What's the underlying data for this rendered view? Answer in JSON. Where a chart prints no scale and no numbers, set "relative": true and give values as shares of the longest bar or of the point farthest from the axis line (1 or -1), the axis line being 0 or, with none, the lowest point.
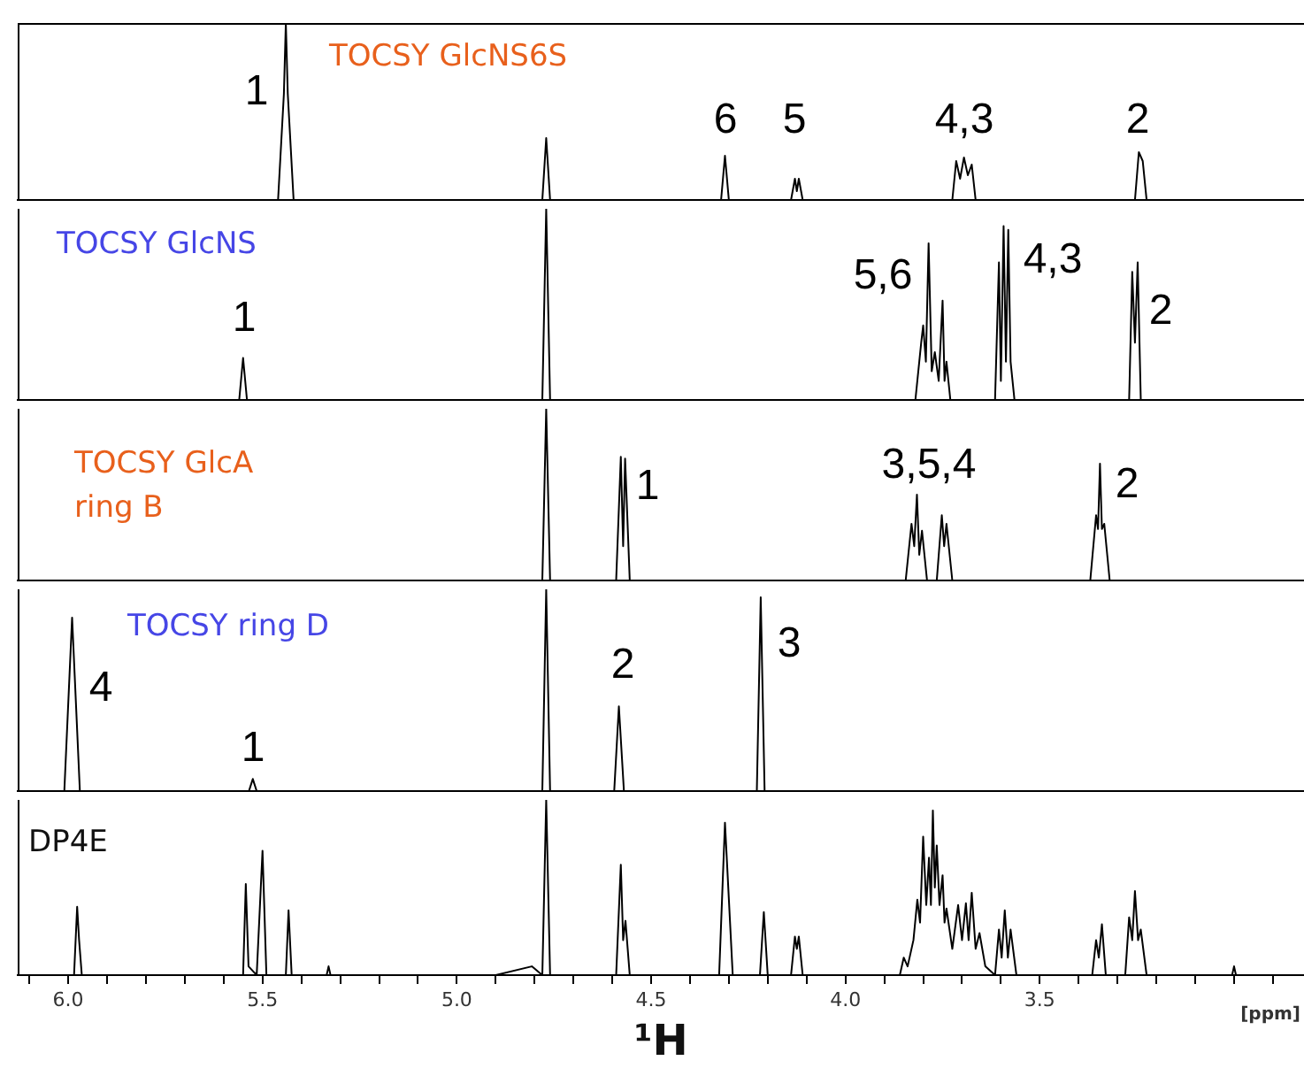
{
  "chart_data": [
    {
      "type": "line",
      "title": "TOCSY GlcNS6S",
      "relative": true,
      "xlim": [
        6.13,
        2.82
      ],
      "tick_labels": false,
      "series": [
        {
          "color": "#000000",
          "x": [
            6.13,
            5.46,
            5.445,
            5.44,
            5.435,
            5.42,
            4.78,
            4.77,
            4.76,
            4.32,
            4.31,
            4.3,
            4.14,
            4.13,
            4.125,
            4.12,
            4.11,
            3.725,
            3.715,
            3.705,
            3.695,
            3.685,
            3.675,
            3.665,
            3.255,
            3.245,
            3.235,
            3.225,
            2.82
          ],
          "values": [
            0,
            0,
            0.6,
            1,
            0.6,
            0,
            0,
            0.35,
            0,
            0,
            0.25,
            0,
            0,
            0.12,
            0.05,
            0.12,
            0,
            0,
            0.22,
            0.12,
            0.24,
            0.14,
            0.2,
            0,
            0,
            0.27,
            0.22,
            0,
            0
          ]
        }
      ],
      "annotations": [
        "1",
        "6",
        "5",
        "4,3",
        "2"
      ]
    },
    {
      "type": "line",
      "title": "TOCSY GlcNS",
      "relative": true,
      "xlim": [
        6.13,
        2.82
      ],
      "tick_labels": false,
      "series": [
        {
          "color": "#000000",
          "x": [
            6.13,
            5.56,
            5.55,
            5.54,
            4.78,
            4.77,
            4.76,
            3.82,
            3.805,
            3.8,
            3.793,
            3.786,
            3.778,
            3.77,
            3.76,
            3.75,
            3.745,
            3.74,
            3.73,
            3.615,
            3.605,
            3.6,
            3.593,
            3.587,
            3.581,
            3.575,
            3.565,
            3.27,
            3.262,
            3.255,
            3.248,
            3.24,
            2.82
          ],
          "values": [
            0,
            0,
            0.22,
            0,
            0,
            1,
            0,
            0,
            0.3,
            0.39,
            0.2,
            0.82,
            0.15,
            0.25,
            0.1,
            0.52,
            0.1,
            0.2,
            0,
            0,
            0.72,
            0.1,
            0.91,
            0.2,
            0.89,
            0.2,
            0,
            0,
            0.67,
            0.3,
            0.72,
            0,
            0
          ]
        }
      ],
      "annotations": [
        "1",
        "5,6",
        "4,3",
        "2"
      ]
    },
    {
      "type": "line",
      "title": "TOCSY GlcA\nring B",
      "relative": true,
      "xlim": [
        6.13,
        2.82
      ],
      "tick_labels": false,
      "series": [
        {
          "color": "#000000",
          "x": [
            6.13,
            4.78,
            4.77,
            4.76,
            4.59,
            4.578,
            4.572,
            4.567,
            4.555,
            3.845,
            3.83,
            3.823,
            3.816,
            3.81,
            3.803,
            3.79,
            3.765,
            3.752,
            3.746,
            3.74,
            3.725,
            3.37,
            3.355,
            3.35,
            3.345,
            3.34,
            3.334,
            3.32,
            2.82
          ],
          "values": [
            0,
            0,
            1,
            0,
            0,
            0.72,
            0.2,
            0.71,
            0,
            0,
            0.33,
            0.2,
            0.5,
            0.15,
            0.29,
            0,
            0,
            0.38,
            0.2,
            0.33,
            0,
            0,
            0.38,
            0.3,
            0.68,
            0.3,
            0.33,
            0,
            0
          ]
        }
      ],
      "annotations": [
        "1",
        "3,5,4",
        "2"
      ]
    },
    {
      "type": "line",
      "title": "TOCSY ring D",
      "relative": true,
      "xlim": [
        6.13,
        2.82
      ],
      "tick_labels": false,
      "series": [
        {
          "color": "#000000",
          "x": [
            6.13,
            6.01,
            5.99,
            5.97,
            5.535,
            5.525,
            5.515,
            4.78,
            4.77,
            4.76,
            4.595,
            4.583,
            4.57,
            4.228,
            4.218,
            4.208,
            2.82
          ],
          "values": [
            0,
            0,
            0.86,
            0,
            0,
            0.06,
            0,
            0,
            1,
            0,
            0,
            0.42,
            0,
            0,
            0.96,
            0,
            0
          ]
        }
      ],
      "annotations": [
        "4",
        "1",
        "2",
        "3"
      ]
    },
    {
      "type": "line",
      "title": "DP4E",
      "relative": true,
      "xlim": [
        6.13,
        2.82
      ],
      "xlabel": "¹H",
      "xticks": [
        {
          "value": 6.1,
          "label": null
        },
        {
          "value": 6,
          "label": "6.0"
        },
        {
          "value": 5.9,
          "label": null
        },
        {
          "value": 5.8,
          "label": null
        },
        {
          "value": 5.7,
          "label": null
        },
        {
          "value": 5.6,
          "label": null
        },
        {
          "value": 5.5,
          "label": "5.5"
        },
        {
          "value": 5.4,
          "label": null
        },
        {
          "value": 5.3,
          "label": null
        },
        {
          "value": 5.2,
          "label": null
        },
        {
          "value": 5.1,
          "label": null
        },
        {
          "value": 5,
          "label": "5.0"
        },
        {
          "value": 4.9,
          "label": null
        },
        {
          "value": 4.8,
          "label": null
        },
        {
          "value": 4.7,
          "label": null
        },
        {
          "value": 4.6,
          "label": null
        },
        {
          "value": 4.5,
          "label": "4.5"
        },
        {
          "value": 4.4,
          "label": null
        },
        {
          "value": 4.3,
          "label": null
        },
        {
          "value": 4.2,
          "label": null
        },
        {
          "value": 4.1,
          "label": null
        },
        {
          "value": 4,
          "label": "4.0"
        },
        {
          "value": 3.9,
          "label": null
        },
        {
          "value": 3.8,
          "label": null
        },
        {
          "value": 3.7,
          "label": null
        },
        {
          "value": 3.6,
          "label": null
        },
        {
          "value": 3.5,
          "label": "3.5"
        },
        {
          "value": 3.4,
          "label": null
        },
        {
          "value": 3.3,
          "label": null
        },
        {
          "value": 3.2,
          "label": null
        },
        {
          "value": 3.1,
          "label": null
        },
        {
          "value": 3,
          "label": null
        },
        {
          "value": 2.9,
          "label": null
        }
      ],
      "series": [
        {
          "color": "#000000",
          "x": [
            6.13,
            5.985,
            5.977,
            5.972,
            5.965,
            5.55,
            5.543,
            5.536,
            5.515,
            5.5,
            5.49,
            5.44,
            5.433,
            5.425,
            5.335,
            5.33,
            5.325,
            4.9,
            4.807,
            4.78,
            4.77,
            4.76,
            4.59,
            4.578,
            4.572,
            4.566,
            4.555,
            4.325,
            4.31,
            4.29,
            4.22,
            4.21,
            4.2,
            4.14,
            4.13,
            4.125,
            4.12,
            4.11,
            3.86,
            3.85,
            3.84,
            3.825,
            3.815,
            3.808,
            3.8,
            3.792,
            3.785,
            3.78,
            3.775,
            3.77,
            3.765,
            3.758,
            3.75,
            3.745,
            3.74,
            3.725,
            3.71,
            3.7,
            3.69,
            3.683,
            3.675,
            3.665,
            3.655,
            3.64,
            3.615,
            3.605,
            3.598,
            3.59,
            3.582,
            3.575,
            3.56,
            3.365,
            3.355,
            3.348,
            3.34,
            3.33,
            3.28,
            3.27,
            3.262,
            3.255,
            3.247,
            3.24,
            3.225,
            3.005,
            3.0,
            2.995,
            2.82
          ],
          "values": [
            0,
            0,
            0.39,
            0.2,
            0,
            0,
            0.52,
            0.05,
            0,
            0.71,
            0,
            0,
            0.37,
            0,
            0,
            0.05,
            0,
            0,
            0.05,
            0,
            1,
            0,
            0,
            0.63,
            0.2,
            0.31,
            0,
            0,
            0.87,
            0,
            0,
            0.36,
            0,
            0,
            0.22,
            0.15,
            0.22,
            0,
            0,
            0.1,
            0.05,
            0.2,
            0.43,
            0.3,
            0.79,
            0.4,
            0.67,
            0.4,
            0.94,
            0.5,
            0.74,
            0.4,
            0.57,
            0.3,
            0.38,
            0.15,
            0.4,
            0.2,
            0.41,
            0.2,
            0.47,
            0.15,
            0.24,
            0.05,
            0,
            0.26,
            0.1,
            0.37,
            0.1,
            0.26,
            0,
            0,
            0.2,
            0.1,
            0.29,
            0,
            0,
            0.33,
            0.2,
            0.48,
            0.2,
            0.26,
            0,
            0,
            0.05,
            0,
            0
          ]
        }
      ],
      "annotations": [
        "[ppm]"
      ]
    }
  ]
}
